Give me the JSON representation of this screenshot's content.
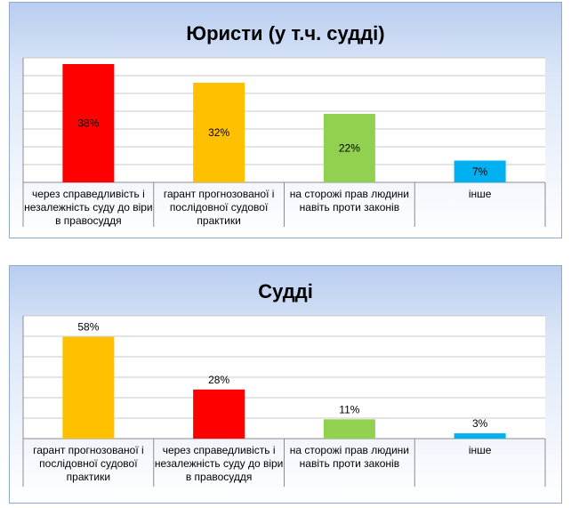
{
  "chart_data": [
    {
      "type": "bar",
      "title": "Юристи (у т.ч. судді)",
      "categories": [
        "через справедливість і незалежність суду до віри в правосуддя",
        "гарант прогнозованої і послідовної судової практики",
        "на сторожі прав людини навіть проти законів",
        "інше"
      ],
      "values": [
        38,
        32,
        22,
        7
      ],
      "labels": [
        "38%",
        "32%",
        "22%",
        "7%"
      ],
      "colors": [
        "#ff0000",
        "#ffc000",
        "#92d050",
        "#00b0f0"
      ],
      "label_position": "inside",
      "ylim": [
        0,
        40
      ],
      "grid": true
    },
    {
      "type": "bar",
      "title": "Судді",
      "categories": [
        "гарант прогнозованої і послідовної судової практики",
        "через справедливість і незалежність суду до віри в правосуддя",
        "на сторожі прав людини навіть проти законів",
        "інше"
      ],
      "values": [
        58,
        28,
        11,
        3
      ],
      "labels": [
        "58%",
        "28%",
        "11%",
        "3%"
      ],
      "colors": [
        "#ffc000",
        "#ff0000",
        "#92d050",
        "#00b0f0"
      ],
      "label_position": "above",
      "ylim": [
        0,
        70
      ],
      "grid": true
    }
  ]
}
